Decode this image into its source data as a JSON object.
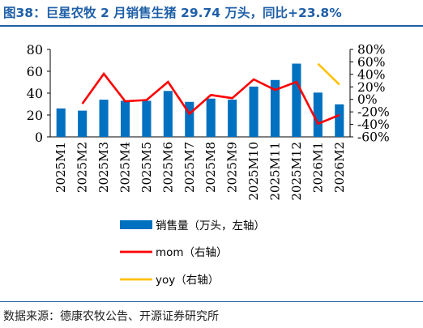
{
  "title": "图38：巨星农牧 2 月销售生猪 29.74 万头，同比+23.8%",
  "source": "数据来源：德康农牧公告、开源证券研究所",
  "colors": {
    "bar": "#0070c0",
    "mom": "#ff0000",
    "yoy": "#ffc000",
    "accent": "#1f5fa8"
  },
  "chart_data": {
    "type": "bar",
    "categories": [
      "2025M1",
      "2025M2",
      "2025M3",
      "2025M4",
      "2025M5",
      "2025M6",
      "2025M7",
      "2025M8",
      "2025M9",
      "2025M10",
      "2025M11",
      "2025M12",
      "2026M1",
      "2026M2"
    ],
    "series": [
      {
        "name": "销售量（万头，左轴）",
        "type": "bar",
        "axis": "left",
        "values": [
          26,
          24,
          34,
          33,
          33,
          42,
          32,
          35,
          34,
          46,
          52,
          67,
          40.5,
          29.74
        ]
      },
      {
        "name": "mom（右轴）",
        "type": "line",
        "axis": "right",
        "values": [
          null,
          -7,
          41,
          -3,
          -1,
          28,
          -23,
          7,
          2,
          32,
          15,
          28,
          -39,
          -25
        ]
      },
      {
        "name": "yoy（右轴）",
        "type": "line",
        "axis": "right",
        "values": [
          null,
          null,
          null,
          null,
          null,
          null,
          null,
          null,
          null,
          null,
          null,
          null,
          57,
          23.8
        ]
      }
    ],
    "y_left": {
      "min": 0,
      "max": 80,
      "ticks": [
        "0",
        "20",
        "40",
        "60",
        "80"
      ]
    },
    "y_right": {
      "min": -60,
      "max": 80,
      "ticks": [
        "-60%",
        "-40%",
        "-20%",
        "0%",
        "20%",
        "40%",
        "60%",
        "80%"
      ]
    },
    "legend_position": "bottom",
    "grid": false
  }
}
